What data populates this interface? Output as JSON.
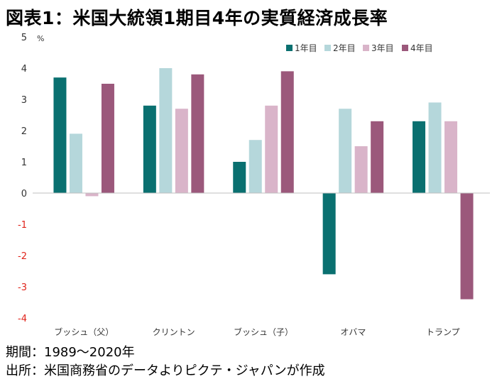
{
  "title": "図表1：米国大統領1期目4年の実質経済成長率",
  "footer": {
    "period": "期間：1989～2020年",
    "source": "出所：米国商務省のデータよりピクテ・ジャパンが作成"
  },
  "chart_data": {
    "type": "bar",
    "unit_label": "%",
    "categories": [
      "ブッシュ（父）",
      "クリントン",
      "ブッシュ（子）",
      "オバマ",
      "トランプ"
    ],
    "series": [
      {
        "name": "1年目",
        "color": "#0a7070",
        "values": [
          3.7,
          2.8,
          1.0,
          -2.6,
          2.3
        ]
      },
      {
        "name": "2年目",
        "color": "#b5d7db",
        "values": [
          1.9,
          4.0,
          1.7,
          2.7,
          2.9
        ]
      },
      {
        "name": "3年目",
        "color": "#d9b4c9",
        "values": [
          -0.1,
          2.7,
          2.8,
          1.5,
          2.3
        ]
      },
      {
        "name": "4年目",
        "color": "#9b587b",
        "values": [
          3.5,
          3.8,
          3.9,
          2.3,
          -3.4
        ]
      }
    ],
    "ylim": [
      -4,
      5
    ],
    "yticks": [
      "5",
      "4",
      "3",
      "2",
      "1",
      "0",
      "-1",
      "-2",
      "-3",
      "-4"
    ],
    "negative_tick_color": "#e0241b",
    "grid": false,
    "legend_position": "top-right"
  }
}
